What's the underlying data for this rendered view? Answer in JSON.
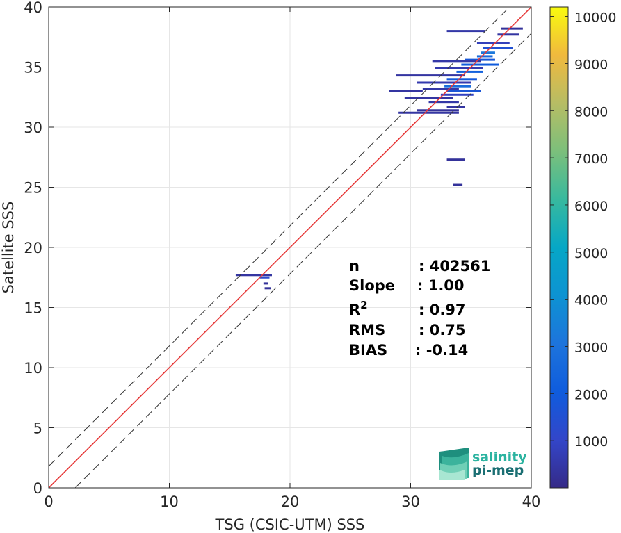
{
  "chart_data": {
    "type": "heatmap",
    "subtype": "density-scatter",
    "xlabel": "TSG (CSIC-UTM) SSS",
    "ylabel": "Satellite SSS",
    "xlim": [
      0,
      40
    ],
    "ylim": [
      0,
      40
    ],
    "x_ticks": [
      0,
      10,
      20,
      30,
      40
    ],
    "y_ticks": [
      0,
      5,
      10,
      15,
      20,
      25,
      30,
      35,
      40
    ],
    "grid": true,
    "colorbar": {
      "colormap": "parula",
      "range": [
        0,
        10200
      ],
      "ticks": [
        1000,
        2000,
        3000,
        4000,
        5000,
        6000,
        7000,
        8000,
        9000,
        10000
      ]
    },
    "reference_lines": [
      {
        "name": "1:1 line",
        "style": "solid",
        "color": "#e63939",
        "x": [
          0,
          40
        ],
        "y": [
          0,
          40
        ]
      },
      {
        "name": "upper bound",
        "style": "dashed",
        "color": "#333333",
        "x": [
          0,
          40
        ],
        "y": [
          1.8,
          41.8
        ]
      },
      {
        "name": "lower bound",
        "style": "dashed",
        "color": "#333333",
        "x": [
          2.2,
          40
        ],
        "y": [
          0,
          37.8
        ]
      }
    ],
    "density_segments": [
      {
        "x0": 33.0,
        "x1": 36.2,
        "y": 38.0,
        "count": 500
      },
      {
        "x0": 35.5,
        "x1": 38.2,
        "y": 37.0,
        "count": 800
      },
      {
        "x0": 37.2,
        "x1": 39.0,
        "y": 37.7,
        "count": 400
      },
      {
        "x0": 37.5,
        "x1": 39.3,
        "y": 38.2,
        "count": 300
      },
      {
        "x0": 36.0,
        "x1": 38.5,
        "y": 36.6,
        "count": 1500
      },
      {
        "x0": 35.8,
        "x1": 37.0,
        "y": 36.2,
        "count": 3200
      },
      {
        "x0": 35.5,
        "x1": 36.8,
        "y": 35.9,
        "count": 2600
      },
      {
        "x0": 34.5,
        "x1": 37.0,
        "y": 35.6,
        "count": 1800
      },
      {
        "x0": 31.8,
        "x1": 35.8,
        "y": 35.5,
        "count": 500
      },
      {
        "x0": 34.2,
        "x1": 37.3,
        "y": 35.2,
        "count": 2000
      },
      {
        "x0": 32.0,
        "x1": 36.0,
        "y": 34.9,
        "count": 600
      },
      {
        "x0": 33.8,
        "x1": 36.0,
        "y": 34.6,
        "count": 2300
      },
      {
        "x0": 28.8,
        "x1": 34.5,
        "y": 34.3,
        "count": 400
      },
      {
        "x0": 33.0,
        "x1": 35.5,
        "y": 34.0,
        "count": 1900
      },
      {
        "x0": 30.5,
        "x1": 35.0,
        "y": 33.7,
        "count": 600
      },
      {
        "x0": 32.8,
        "x1": 35.0,
        "y": 33.4,
        "count": 2700
      },
      {
        "x0": 31.0,
        "x1": 34.0,
        "y": 33.2,
        "count": 500
      },
      {
        "x0": 33.0,
        "x1": 35.8,
        "y": 33.0,
        "count": 1700
      },
      {
        "x0": 32.5,
        "x1": 35.2,
        "y": 32.7,
        "count": 900
      },
      {
        "x0": 28.2,
        "x1": 31.0,
        "y": 33.0,
        "count": 400
      },
      {
        "x0": 29.5,
        "x1": 33.5,
        "y": 32.4,
        "count": 400
      },
      {
        "x0": 31.5,
        "x1": 34.0,
        "y": 32.1,
        "count": 500
      },
      {
        "x0": 33.0,
        "x1": 34.5,
        "y": 31.7,
        "count": 400
      },
      {
        "x0": 30.5,
        "x1": 34.0,
        "y": 31.4,
        "count": 300
      },
      {
        "x0": 29.0,
        "x1": 34.0,
        "y": 31.2,
        "count": 400
      },
      {
        "x0": 33.0,
        "x1": 34.5,
        "y": 27.3,
        "count": 300
      },
      {
        "x0": 33.5,
        "x1": 34.3,
        "y": 25.2,
        "count": 300
      },
      {
        "x0": 15.5,
        "x1": 18.5,
        "y": 17.7,
        "count": 400
      },
      {
        "x0": 17.5,
        "x1": 18.3,
        "y": 17.5,
        "count": 1200
      },
      {
        "x0": 17.8,
        "x1": 18.2,
        "y": 17.0,
        "count": 300
      },
      {
        "x0": 17.9,
        "x1": 18.4,
        "y": 16.6,
        "count": 300
      }
    ],
    "stats": [
      {
        "label": "n",
        "value": ": 402561"
      },
      {
        "label": "Slope",
        "value": ": 1.00"
      },
      {
        "label": "R",
        "sup": "2",
        "value": ": 0.97"
      },
      {
        "label": "RMS",
        "value": ": 0.75"
      },
      {
        "label": "BIAS",
        "value": ": -0.14"
      }
    ]
  },
  "logo": {
    "line1": "salinity",
    "line2": "pi-mep"
  }
}
